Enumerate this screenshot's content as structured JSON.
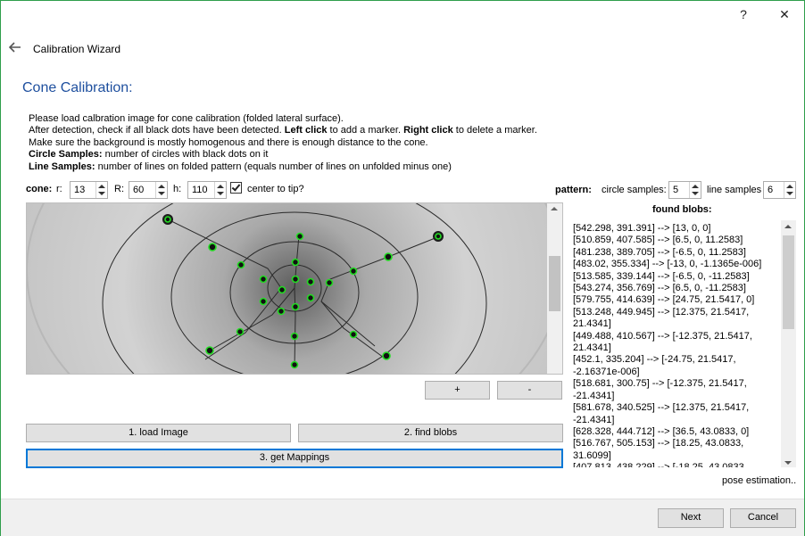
{
  "window": {
    "help_glyph": "?",
    "close_glyph": "✕",
    "wizard_title": "Calibration Wizard"
  },
  "page_title": "Cone Calibration:",
  "instructions": {
    "line1": "Please load calbration image for cone calibration (folded lateral surface).",
    "line2_a": "After detection, check if all black dots have been detected. ",
    "line2_b": "Left click",
    "line2_c": " to add a marker. ",
    "line2_d": "Right click",
    "line2_e": " to delete a marker.",
    "line3": "Make sure the background is mostly homogenous and there is enough distance to the cone.",
    "line4_label": "Circle Samples:",
    "line4_text": " number of circles with black dots on it",
    "line5_label": "Line Samples:",
    "line5_text": " number of lines on folded pattern (equals number of lines on unfolded minus one)"
  },
  "cone": {
    "label": "cone:",
    "r_label": "r:",
    "r_value": "13",
    "R_label": "R:",
    "R_value": "60",
    "h_label": "h:",
    "h_value": "110",
    "center_label": "center to tip?",
    "center_checked": true
  },
  "pattern": {
    "label": "pattern:",
    "circle_label": "circle samples:",
    "circle_value": "5",
    "line_label": "line samples",
    "line_value": "6"
  },
  "found_blobs": {
    "title": "found blobs:",
    "items": [
      "[542.298, 391.391] --> [13, 0, 0]",
      "[510.859, 407.585] --> [6.5, 0, 11.2583]",
      "[481.238, 389.705] --> [-6.5, 0, 11.2583]",
      "[483.02, 355.334] --> [-13, 0, -1.1365e-006]",
      "[513.585, 339.144] --> [-6.5, 0, -11.2583]",
      "[543.274, 356.769] --> [6.5, 0, -11.2583]",
      "[579.755, 414.639] --> [24.75, 21.5417, 0]",
      "[513.248, 449.945] --> [12.375, 21.5417, 21.4341]",
      "[449.488, 410.567] --> [-12.375, 21.5417, 21.4341]",
      "[452.1, 335.204] --> [-24.75, 21.5417, -2.16371e-006]",
      "[518.681, 300.75] --> [-12.375, 21.5417, -21.4341]",
      "[581.678, 340.525] --> [12.375, 21.5417, -21.4341]",
      "[628.328, 444.712] --> [36.5, 43.0833, 0]",
      "[516.767, 505.153] --> [18.25, 43.0833, 31.6099]",
      "[407.813, 438.229] --> [-18.25, 43.0833,"
    ]
  },
  "zoom": {
    "plus": "+",
    "minus": "-"
  },
  "actions": {
    "load_image": "1. load Image",
    "find_blobs": "2. find blobs",
    "get_mappings": "3. get Mappings",
    "pose_estimation": "pose estimation.."
  },
  "footer": {
    "next": "Next",
    "cancel": "Cancel"
  },
  "colors": {
    "accent": "#0078d7",
    "title_blue": "#1e4f9e",
    "marker_green": "#22dd22"
  }
}
